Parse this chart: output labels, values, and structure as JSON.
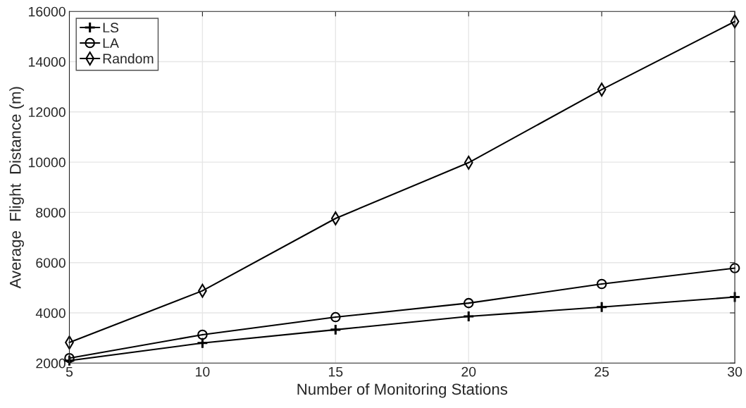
{
  "chart_data": {
    "type": "line",
    "xlabel": "Number of Monitoring Stations",
    "ylabel": "Average  Flight  Distance (m)",
    "x": [
      5,
      10,
      15,
      20,
      25,
      30
    ],
    "series": [
      {
        "name": "LS",
        "color": "#000000",
        "marker": "cross",
        "values": [
          2100,
          2800,
          3330,
          3860,
          4230,
          4630
        ]
      },
      {
        "name": "LA",
        "color": "#000000",
        "marker": "circle",
        "values": [
          2200,
          3130,
          3830,
          4390,
          5150,
          5780
        ]
      },
      {
        "name": "Random",
        "color": "#000000",
        "marker": "diamond",
        "values": [
          2820,
          4880,
          7760,
          9980,
          12890,
          15600
        ]
      }
    ],
    "xlim": [
      5,
      30
    ],
    "xticks": [
      5,
      10,
      15,
      20,
      25,
      30
    ],
    "ylim": [
      2000,
      16000
    ],
    "yticks": [
      2000,
      4000,
      6000,
      8000,
      10000,
      12000,
      14000,
      16000
    ],
    "grid": true,
    "legend": "top left",
    "line_style": "solid"
  }
}
